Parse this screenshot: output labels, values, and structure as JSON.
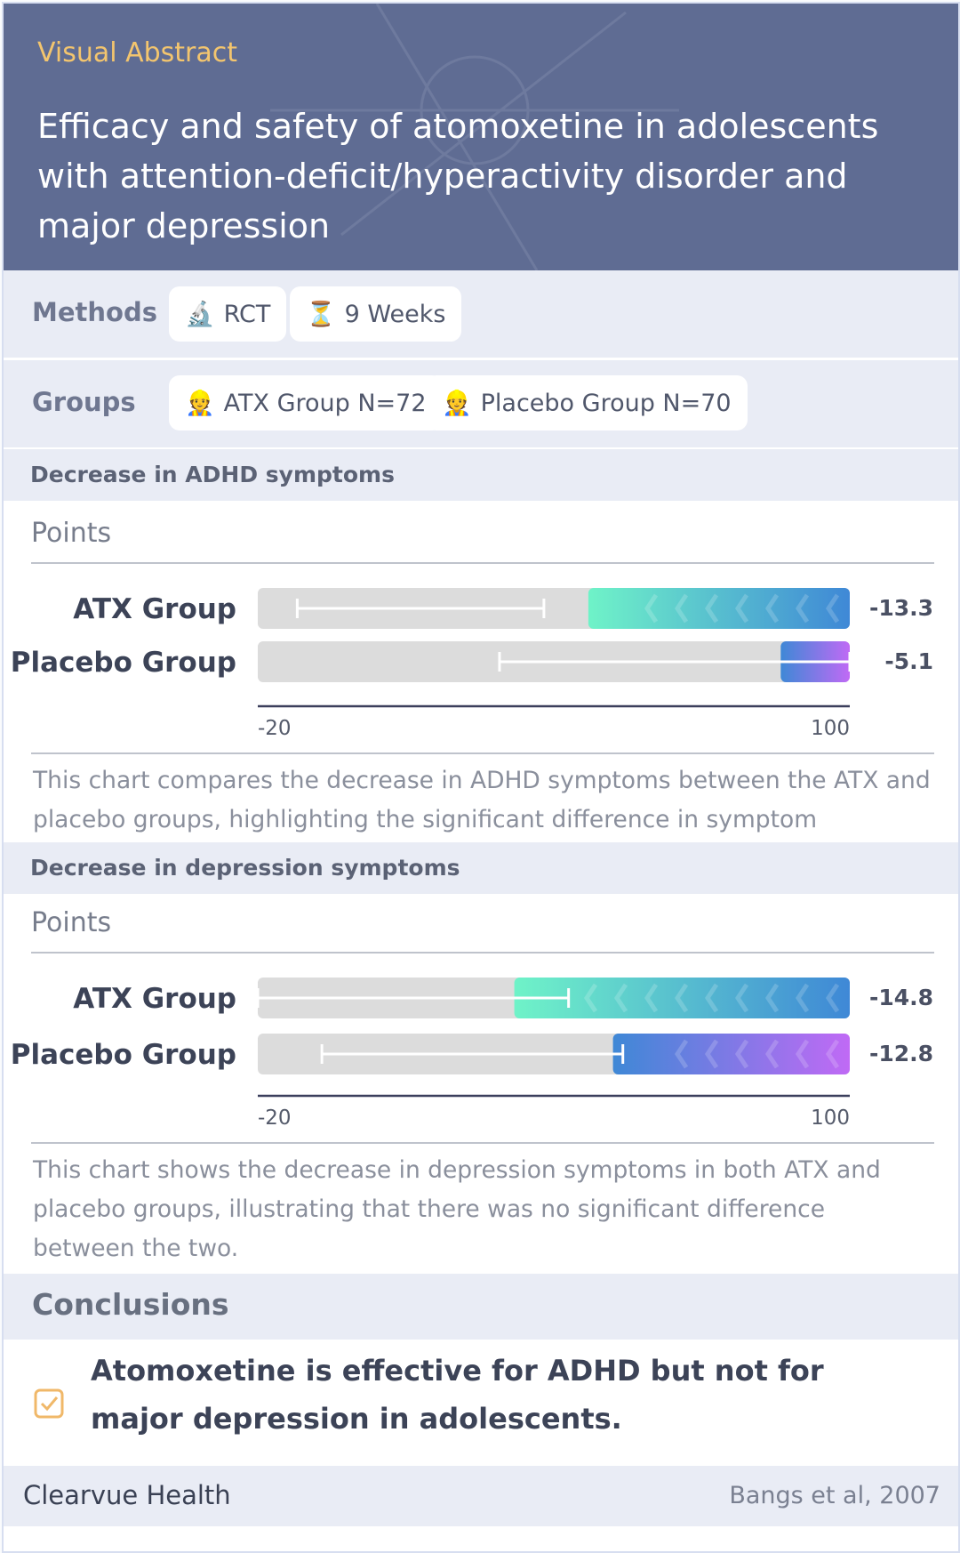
{
  "header": {
    "kicker": "Visual Abstract",
    "title": "Efficacy and safety of atomoxetine in adolescents with attention-deficit/hyperactivity disorder and major depression"
  },
  "methods": {
    "label": "Methods",
    "items": [
      {
        "icon": "microscope-icon",
        "glyph": "🔬",
        "text": "RCT"
      },
      {
        "icon": "hourglass-icon",
        "glyph": "⏳",
        "text": "9 Weeks"
      }
    ]
  },
  "groups": {
    "label": "Groups",
    "items": [
      {
        "icon": "person-icon",
        "glyph": "👷",
        "text": "ATX Group N=72"
      },
      {
        "icon": "person-icon",
        "glyph": "👷",
        "text": "Placebo Group N=70"
      }
    ]
  },
  "chart_data": [
    {
      "type": "bar",
      "title": "Decrease in ADHD symptoms",
      "ylabel": "Points",
      "categories": [
        "ATX Group",
        "Placebo Group"
      ],
      "values": [
        -13.3,
        -5.1
      ],
      "value_labels": [
        "-13.3",
        "-5.1"
      ],
      "error_bars": [
        [
          -12,
          38
        ],
        [
          29,
          100
        ]
      ],
      "bar_spans": [
        [
          47,
          100
        ],
        [
          86,
          100
        ]
      ],
      "xlim": [
        -20,
        100
      ],
      "tick_labels": [
        "-20",
        "100"
      ],
      "colors": [
        [
          "#6ff3c8",
          "#3f88d6"
        ],
        [
          "#3f88d6",
          "#c06af5"
        ]
      ],
      "description": "This chart compares the decrease in ADHD symptoms between the ATX and placebo groups, highlighting the significant difference in symptom reduction."
    },
    {
      "type": "bar",
      "title": "Decrease in depression symptoms",
      "ylabel": "Points",
      "categories": [
        "ATX Group",
        "Placebo Group"
      ],
      "values": [
        -14.8,
        -12.8
      ],
      "value_labels": [
        "-14.8",
        "-12.8"
      ],
      "error_bars": [
        [
          -20,
          43
        ],
        [
          -7,
          54
        ]
      ],
      "bar_spans": [
        [
          32,
          100
        ],
        [
          52,
          100
        ]
      ],
      "xlim": [
        -20,
        100
      ],
      "tick_labels": [
        "-20",
        "100"
      ],
      "colors": [
        [
          "#6ff3c8",
          "#3f88d6"
        ],
        [
          "#3f88d6",
          "#c06af5"
        ]
      ],
      "description": "This chart shows the decrease in depression symptoms in both ATX and placebo groups, illustrating that there was no significant difference between the two."
    }
  ],
  "conclusions": {
    "label": "Conclusions",
    "text": "Atomoxetine is effective for ADHD but not for major depression in adolescents."
  },
  "footer": {
    "brand": "Clearvue Health",
    "citation": "Bangs et al, 2007"
  }
}
